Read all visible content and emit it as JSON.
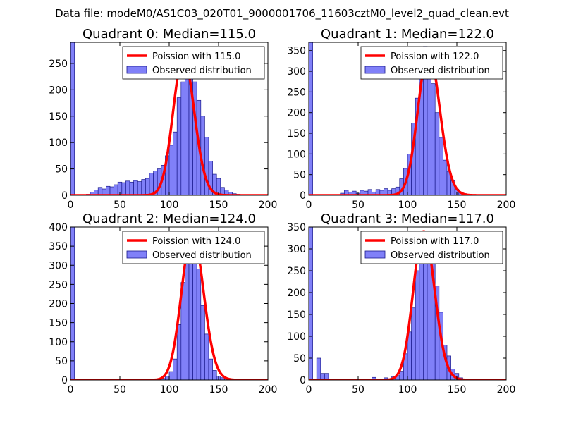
{
  "figure": {
    "suptitle": "Data file: modeM0/AS1C03_020T01_9000001706_11603cztM0_level2_quad_clean.evt",
    "colors": {
      "bar_fill": "#8080f8",
      "bar_edge": "#1a1a8c",
      "curve": "#ff0000"
    }
  },
  "chart_data": [
    {
      "type": "bar",
      "title": "Quadrant 0: Median=115.0",
      "xlabel": "",
      "ylabel": "",
      "xlim": [
        0,
        200
      ],
      "ylim": [
        0,
        290
      ],
      "xticks": [
        0,
        50,
        100,
        150,
        200
      ],
      "yticks": [
        0,
        50,
        100,
        150,
        200,
        250
      ],
      "bin_width": 4,
      "bins_start": [
        0,
        4,
        8,
        12,
        16,
        20,
        24,
        28,
        32,
        36,
        40,
        44,
        48,
        52,
        56,
        60,
        64,
        68,
        72,
        76,
        80,
        84,
        88,
        92,
        96,
        100,
        104,
        108,
        112,
        116,
        120,
        124,
        128,
        132,
        136,
        140,
        144,
        148,
        152,
        156,
        160,
        164,
        168,
        172,
        176,
        180,
        184,
        188,
        192,
        196
      ],
      "counts": [
        290,
        0,
        0,
        0,
        2,
        6,
        10,
        15,
        12,
        17,
        16,
        20,
        25,
        24,
        27,
        25,
        28,
        26,
        30,
        32,
        42,
        46,
        50,
        57,
        75,
        95,
        120,
        185,
        215,
        245,
        235,
        215,
        180,
        150,
        110,
        65,
        40,
        32,
        15,
        10,
        6,
        3,
        2,
        1,
        0,
        0,
        0,
        0,
        0,
        0
      ],
      "legend": [
        "Poission with 115.0",
        "Observed distribution"
      ],
      "legend_loc": "upper right",
      "curve": {
        "label": "Poission with 115.0",
        "mean": 115.0,
        "peak": 262
      }
    },
    {
      "type": "bar",
      "title": "Quadrant 1: Median=122.0",
      "xlabel": "",
      "ylabel": "",
      "xlim": [
        0,
        200
      ],
      "ylim": [
        0,
        370
      ],
      "xticks": [
        0,
        50,
        100,
        150,
        200
      ],
      "yticks": [
        0,
        50,
        100,
        150,
        200,
        250,
        300,
        350
      ],
      "bin_width": 4,
      "bins_start": [
        0,
        4,
        8,
        12,
        16,
        20,
        24,
        28,
        32,
        36,
        40,
        44,
        48,
        52,
        56,
        60,
        64,
        68,
        72,
        76,
        80,
        84,
        88,
        92,
        96,
        100,
        104,
        108,
        112,
        116,
        120,
        124,
        128,
        132,
        136,
        140,
        144,
        148,
        152,
        156,
        160,
        164,
        168,
        172,
        176,
        180,
        184,
        188,
        192,
        196
      ],
      "counts": [
        370,
        0,
        0,
        0,
        0,
        0,
        0,
        1,
        5,
        12,
        8,
        10,
        5,
        12,
        10,
        14,
        8,
        14,
        12,
        16,
        12,
        16,
        20,
        40,
        65,
        100,
        175,
        235,
        310,
        360,
        340,
        270,
        200,
        140,
        85,
        58,
        35,
        15,
        8,
        4,
        2,
        1,
        0,
        0,
        0,
        0,
        0,
        0,
        0,
        0
      ],
      "legend": [
        "Poission with 122.0",
        "Observed distribution"
      ],
      "legend_loc": "upper right",
      "curve": {
        "label": "Poission with 122.0",
        "mean": 122.0,
        "peak": 345
      }
    },
    {
      "type": "bar",
      "title": "Quadrant 2: Median=124.0",
      "xlabel": "",
      "ylabel": "",
      "xlim": [
        0,
        200
      ],
      "ylim": [
        0,
        400
      ],
      "xticks": [
        0,
        50,
        100,
        150,
        200
      ],
      "yticks": [
        0,
        50,
        100,
        150,
        200,
        250,
        300,
        350,
        400
      ],
      "bin_width": 4,
      "bins_start": [
        0,
        4,
        8,
        12,
        16,
        20,
        24,
        28,
        32,
        36,
        40,
        44,
        48,
        52,
        56,
        60,
        64,
        68,
        72,
        76,
        80,
        84,
        88,
        92,
        96,
        100,
        104,
        108,
        112,
        116,
        120,
        124,
        128,
        132,
        136,
        140,
        144,
        148,
        152,
        156,
        160,
        164,
        168,
        172,
        176,
        180,
        184,
        188,
        192,
        196
      ],
      "counts": [
        400,
        0,
        0,
        0,
        0,
        0,
        0,
        0,
        0,
        0,
        0,
        0,
        0,
        0,
        0,
        0,
        0,
        0,
        0,
        0,
        0,
        0,
        2,
        4,
        10,
        22,
        55,
        145,
        255,
        335,
        380,
        355,
        290,
        195,
        120,
        55,
        25,
        10,
        6,
        3,
        2,
        1,
        0,
        0,
        0,
        0,
        0,
        0,
        0,
        0
      ],
      "legend": [
        "Poission with 124.0",
        "Observed distribution"
      ],
      "legend_loc": "upper right",
      "curve": {
        "label": "Poission with 124.0",
        "mean": 124.0,
        "peak": 382
      }
    },
    {
      "type": "bar",
      "title": "Quadrant 3: Median=117.0",
      "xlabel": "",
      "ylabel": "",
      "xlim": [
        0,
        200
      ],
      "ylim": [
        0,
        350
      ],
      "xticks": [
        0,
        50,
        100,
        150,
        200
      ],
      "yticks": [
        0,
        50,
        100,
        150,
        200,
        250,
        300,
        350
      ],
      "bin_width": 4,
      "bins_start": [
        0,
        4,
        8,
        12,
        16,
        20,
        24,
        28,
        32,
        36,
        40,
        44,
        48,
        52,
        56,
        60,
        64,
        68,
        72,
        76,
        80,
        84,
        88,
        92,
        96,
        100,
        104,
        108,
        112,
        116,
        120,
        124,
        128,
        132,
        136,
        140,
        144,
        148,
        152,
        156,
        160,
        164,
        168,
        172,
        176,
        180,
        184,
        188,
        192,
        196
      ],
      "counts": [
        350,
        0,
        50,
        15,
        15,
        0,
        0,
        0,
        0,
        2,
        0,
        0,
        0,
        0,
        0,
        0,
        6,
        0,
        0,
        5,
        0,
        8,
        10,
        20,
        60,
        110,
        165,
        250,
        335,
        320,
        335,
        300,
        215,
        155,
        80,
        55,
        25,
        15,
        5,
        0,
        0,
        0,
        0,
        0,
        0,
        0,
        0,
        0,
        0,
        0
      ],
      "legend": [
        "Poission with 117.0",
        "Observed distribution"
      ],
      "legend_loc": "upper right",
      "curve": {
        "label": "Poission with 117.0",
        "mean": 117.0,
        "peak": 340
      }
    }
  ]
}
